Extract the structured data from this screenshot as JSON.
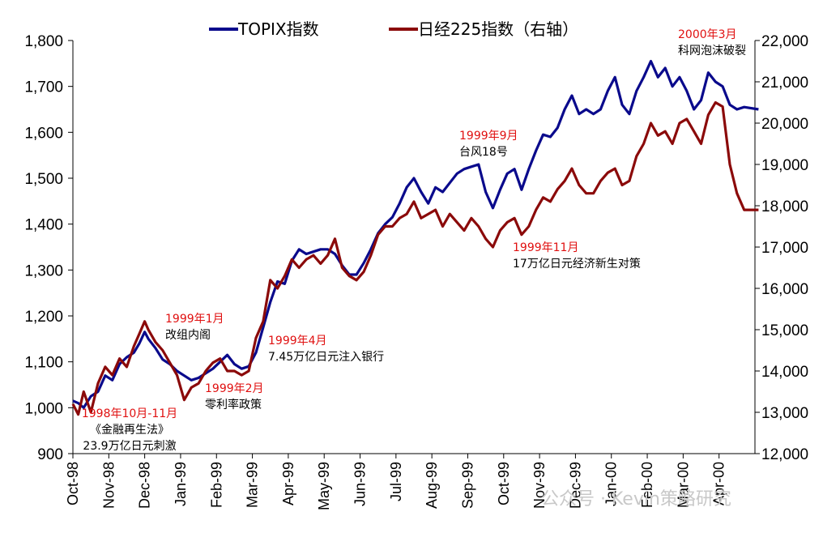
{
  "colors": {
    "topix": "#0a0a8c",
    "nikkei": "#8b0a0a",
    "anno_date": "#e01010",
    "axis": "#000000"
  },
  "chart_data": {
    "type": "line",
    "x_labels": [
      "Oct-98",
      "Nov-98",
      "Dec-98",
      "Jan-99",
      "Feb-99",
      "Mar-99",
      "Apr-99",
      "May-99",
      "Jun-99",
      "Jul-99",
      "Aug-99",
      "Sep-99",
      "Oct-99",
      "Nov-99",
      "Dec-99",
      "Jan-00",
      "Feb-00",
      "Mar-00",
      "Apr-00"
    ],
    "left_axis": {
      "min": 900,
      "max": 1800,
      "ticks": [
        "900",
        "1,000",
        "1,100",
        "1,200",
        "1,300",
        "1,400",
        "1,500",
        "1,600",
        "1,700",
        "1,800"
      ]
    },
    "right_axis": {
      "min": 12000,
      "max": 22000,
      "ticks": [
        "12,000",
        "13,000",
        "14,000",
        "15,000",
        "16,000",
        "17,000",
        "18,000",
        "19,000",
        "20,000",
        "21,000",
        "22,000"
      ]
    },
    "series": [
      {
        "name": "TOPIX指数",
        "axis": "left",
        "points": [
          [
            0,
            1015
          ],
          [
            0.15,
            1010
          ],
          [
            0.3,
            1000
          ],
          [
            0.5,
            1025
          ],
          [
            0.7,
            1035
          ],
          [
            0.9,
            1070
          ],
          [
            1.1,
            1060
          ],
          [
            1.3,
            1095
          ],
          [
            1.5,
            1110
          ],
          [
            1.7,
            1120
          ],
          [
            1.85,
            1140
          ],
          [
            2.0,
            1165
          ],
          [
            2.1,
            1150
          ],
          [
            2.3,
            1130
          ],
          [
            2.5,
            1105
          ],
          [
            2.7,
            1095
          ],
          [
            2.9,
            1080
          ],
          [
            3.1,
            1070
          ],
          [
            3.3,
            1060
          ],
          [
            3.5,
            1065
          ],
          [
            3.7,
            1075
          ],
          [
            3.9,
            1085
          ],
          [
            4.1,
            1100
          ],
          [
            4.3,
            1115
          ],
          [
            4.5,
            1095
          ],
          [
            4.7,
            1085
          ],
          [
            4.9,
            1090
          ],
          [
            5.1,
            1120
          ],
          [
            5.3,
            1175
          ],
          [
            5.5,
            1230
          ],
          [
            5.7,
            1275
          ],
          [
            5.9,
            1270
          ],
          [
            6.1,
            1320
          ],
          [
            6.3,
            1345
          ],
          [
            6.5,
            1335
          ],
          [
            6.7,
            1340
          ],
          [
            6.9,
            1345
          ],
          [
            7.1,
            1345
          ],
          [
            7.3,
            1335
          ],
          [
            7.5,
            1310
          ],
          [
            7.7,
            1290
          ],
          [
            7.9,
            1290
          ],
          [
            8.1,
            1315
          ],
          [
            8.3,
            1345
          ],
          [
            8.5,
            1380
          ],
          [
            8.7,
            1400
          ],
          [
            8.9,
            1415
          ],
          [
            9.1,
            1445
          ],
          [
            9.3,
            1480
          ],
          [
            9.5,
            1500
          ],
          [
            9.7,
            1470
          ],
          [
            9.9,
            1445
          ],
          [
            10.1,
            1480
          ],
          [
            10.3,
            1470
          ],
          [
            10.5,
            1490
          ],
          [
            10.7,
            1510
          ],
          [
            10.9,
            1520
          ],
          [
            11.1,
            1525
          ],
          [
            11.3,
            1530
          ],
          [
            11.5,
            1470
          ],
          [
            11.7,
            1435
          ],
          [
            11.9,
            1475
          ],
          [
            12.1,
            1510
          ],
          [
            12.3,
            1520
          ],
          [
            12.5,
            1475
          ],
          [
            12.7,
            1520
          ],
          [
            12.9,
            1560
          ],
          [
            13.1,
            1595
          ],
          [
            13.3,
            1590
          ],
          [
            13.5,
            1610
          ],
          [
            13.7,
            1650
          ],
          [
            13.9,
            1680
          ],
          [
            14.1,
            1640
          ],
          [
            14.3,
            1650
          ],
          [
            14.5,
            1640
          ],
          [
            14.7,
            1650
          ],
          [
            14.9,
            1690
          ],
          [
            15.1,
            1720
          ],
          [
            15.3,
            1660
          ],
          [
            15.5,
            1640
          ],
          [
            15.7,
            1690
          ],
          [
            15.9,
            1720
          ],
          [
            16.1,
            1755
          ],
          [
            16.3,
            1720
          ],
          [
            16.5,
            1740
          ],
          [
            16.7,
            1700
          ],
          [
            16.9,
            1720
          ],
          [
            17.1,
            1690
          ],
          [
            17.3,
            1650
          ],
          [
            17.5,
            1670
          ],
          [
            17.7,
            1730
          ],
          [
            17.9,
            1710
          ],
          [
            18.1,
            1700
          ],
          [
            18.3,
            1660
          ],
          [
            18.5,
            1650
          ],
          [
            18.7,
            1655
          ],
          [
            19.1,
            1650
          ]
        ]
      },
      {
        "name": "日经225指数（右轴）",
        "axis": "right",
        "points": [
          [
            0,
            13200
          ],
          [
            0.15,
            12950
          ],
          [
            0.3,
            13500
          ],
          [
            0.5,
            13000
          ],
          [
            0.7,
            13700
          ],
          [
            0.9,
            14100
          ],
          [
            1.1,
            13900
          ],
          [
            1.3,
            14300
          ],
          [
            1.5,
            14100
          ],
          [
            1.7,
            14600
          ],
          [
            1.85,
            14900
          ],
          [
            2.0,
            15200
          ],
          [
            2.1,
            15000
          ],
          [
            2.3,
            14700
          ],
          [
            2.5,
            14500
          ],
          [
            2.7,
            14200
          ],
          [
            2.9,
            13900
          ],
          [
            3.1,
            13300
          ],
          [
            3.3,
            13600
          ],
          [
            3.5,
            13700
          ],
          [
            3.7,
            14000
          ],
          [
            3.9,
            14200
          ],
          [
            4.1,
            14300
          ],
          [
            4.3,
            14000
          ],
          [
            4.5,
            14000
          ],
          [
            4.7,
            13900
          ],
          [
            4.9,
            14000
          ],
          [
            5.1,
            14800
          ],
          [
            5.3,
            15200
          ],
          [
            5.5,
            16200
          ],
          [
            5.7,
            16000
          ],
          [
            5.9,
            16300
          ],
          [
            6.1,
            16700
          ],
          [
            6.3,
            16500
          ],
          [
            6.5,
            16700
          ],
          [
            6.7,
            16800
          ],
          [
            6.9,
            16600
          ],
          [
            7.1,
            16800
          ],
          [
            7.3,
            17200
          ],
          [
            7.5,
            16500
          ],
          [
            7.7,
            16300
          ],
          [
            7.9,
            16200
          ],
          [
            8.1,
            16400
          ],
          [
            8.3,
            16800
          ],
          [
            8.5,
            17300
          ],
          [
            8.7,
            17500
          ],
          [
            8.9,
            17500
          ],
          [
            9.1,
            17700
          ],
          [
            9.3,
            17800
          ],
          [
            9.5,
            18100
          ],
          [
            9.7,
            17700
          ],
          [
            9.9,
            17800
          ],
          [
            10.1,
            17900
          ],
          [
            10.3,
            17500
          ],
          [
            10.5,
            17800
          ],
          [
            10.7,
            17600
          ],
          [
            10.9,
            17400
          ],
          [
            11.1,
            17700
          ],
          [
            11.3,
            17500
          ],
          [
            11.5,
            17200
          ],
          [
            11.7,
            17000
          ],
          [
            11.9,
            17400
          ],
          [
            12.1,
            17600
          ],
          [
            12.3,
            17700
          ],
          [
            12.5,
            17300
          ],
          [
            12.7,
            17500
          ],
          [
            12.9,
            17900
          ],
          [
            13.1,
            18200
          ],
          [
            13.3,
            18100
          ],
          [
            13.5,
            18400
          ],
          [
            13.7,
            18600
          ],
          [
            13.9,
            18900
          ],
          [
            14.1,
            18500
          ],
          [
            14.3,
            18300
          ],
          [
            14.5,
            18300
          ],
          [
            14.7,
            18600
          ],
          [
            14.9,
            18800
          ],
          [
            15.1,
            18900
          ],
          [
            15.3,
            18500
          ],
          [
            15.5,
            18600
          ],
          [
            15.7,
            19200
          ],
          [
            15.9,
            19500
          ],
          [
            16.1,
            20000
          ],
          [
            16.3,
            19700
          ],
          [
            16.5,
            19800
          ],
          [
            16.7,
            19500
          ],
          [
            16.9,
            20000
          ],
          [
            17.1,
            20100
          ],
          [
            17.3,
            19800
          ],
          [
            17.5,
            19500
          ],
          [
            17.7,
            20200
          ],
          [
            17.9,
            20500
          ],
          [
            18.1,
            20400
          ],
          [
            18.3,
            19000
          ],
          [
            18.5,
            18300
          ],
          [
            18.7,
            17900
          ],
          [
            19.1,
            17900
          ]
        ]
      }
    ],
    "legend": {
      "position": "top-center"
    },
    "annotations": [
      {
        "date": "1998年10月-11月",
        "lines": [
          "《金融再生法》",
          "23.9万亿日元刺激"
        ]
      },
      {
        "date": "1999年1月",
        "lines": [
          "改组内阁"
        ]
      },
      {
        "date": "1999年2月",
        "lines": [
          "零利率政策"
        ]
      },
      {
        "date": "1999年4月",
        "lines": [
          "7.45万亿日元注入银行"
        ]
      },
      {
        "date": "1999年9月",
        "lines": [
          "台风18号"
        ]
      },
      {
        "date": "1999年11月",
        "lines": [
          "17万亿日元经济新生对策"
        ]
      },
      {
        "date": "2000年3月",
        "lines": [
          "科网泡沫破裂"
        ]
      }
    ]
  },
  "watermark": {
    "text": "公众号 · Kevin策略研究"
  }
}
